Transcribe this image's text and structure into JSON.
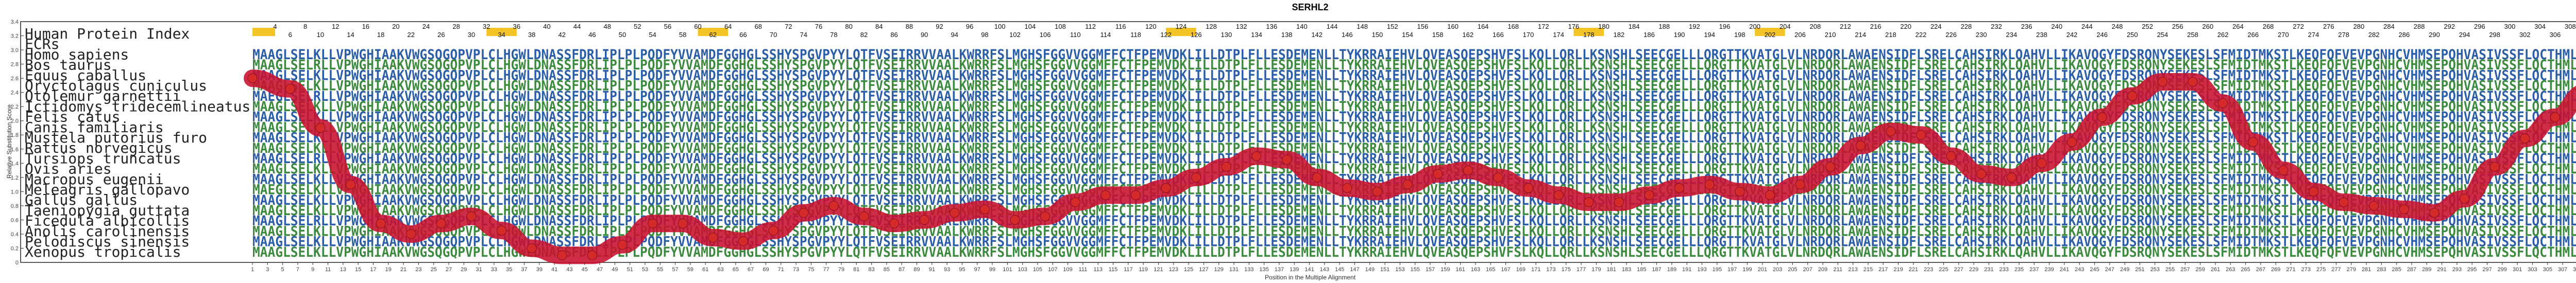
{
  "chart_data": {
    "type": "line",
    "title": "SERHL2",
    "xlabel": "Position in the Multiple Alignment",
    "ylabel": "Relative Substitution Score",
    "xlim": [
      1,
      313
    ],
    "ylim": [
      0,
      3.4
    ],
    "yticks": [
      "0",
      "0.2",
      "0.4",
      "0.6",
      "0.8",
      "1.0",
      "1.2",
      "1.4",
      "1.6",
      "1.8",
      "2.0",
      "2.2",
      "2.4",
      "2.6",
      "2.8",
      "3.0",
      "3.2",
      "3.4"
    ],
    "xticks_bottom": [
      "1",
      "3",
      "5",
      "7",
      "9",
      "11",
      "13",
      "15",
      "17",
      "19",
      "21",
      "23",
      "25",
      "27",
      "29",
      "31",
      "33",
      "35",
      "37",
      "39",
      "41",
      "43",
      "45",
      "47",
      "49",
      "51",
      "53",
      "55",
      "57",
      "59",
      "61",
      "63",
      "65",
      "67",
      "69",
      "71",
      "73",
      "75",
      "77",
      "79",
      "81",
      "83",
      "85",
      "87",
      "89",
      "91",
      "93",
      "95",
      "97",
      "99",
      "101",
      "103",
      "105",
      "107",
      "109",
      "111",
      "113",
      "115",
      "117",
      "119",
      "121",
      "123",
      "125",
      "127",
      "129",
      "131",
      "133",
      "135",
      "137",
      "139",
      "141",
      "143",
      "145",
      "147",
      "149",
      "151",
      "153",
      "155",
      "157",
      "159",
      "161",
      "163",
      "165",
      "167",
      "169",
      "171",
      "173",
      "175",
      "177",
      "179",
      "181",
      "183",
      "185",
      "187",
      "189",
      "191",
      "193",
      "195",
      "197",
      "199",
      "201",
      "203",
      "205",
      "207",
      "209",
      "211",
      "213",
      "215",
      "217",
      "219",
      "221",
      "223",
      "225",
      "227",
      "229",
      "231",
      "233",
      "235",
      "237",
      "239",
      "241",
      "243",
      "245",
      "247",
      "249",
      "251",
      "253",
      "255",
      "257",
      "259",
      "261",
      "263",
      "265",
      "267",
      "269",
      "271",
      "273",
      "275",
      "277",
      "279",
      "281",
      "283",
      "285",
      "287",
      "289",
      "291",
      "293",
      "295",
      "297",
      "299",
      "301",
      "303",
      "305",
      "307",
      "309",
      "311",
      "313"
    ],
    "xticks_top_even": [
      "4",
      "8",
      "12",
      "16",
      "20",
      "24",
      "28",
      "32",
      "36",
      "40",
      "44",
      "48",
      "52",
      "56",
      "60",
      "64",
      "68",
      "72",
      "76",
      "80",
      "84",
      "88",
      "92",
      "96",
      "100",
      "104",
      "108",
      "112",
      "116",
      "120",
      "124",
      "128",
      "132",
      "136",
      "140",
      "144",
      "148",
      "152",
      "156",
      "160",
      "164",
      "168",
      "172",
      "176",
      "180",
      "184",
      "188",
      "192",
      "196",
      "200",
      "204",
      "208",
      "212",
      "216",
      "220",
      "224",
      "228",
      "232",
      "236",
      "240",
      "244",
      "248",
      "252",
      "256",
      "260",
      "264",
      "268",
      "272",
      "276",
      "280",
      "284",
      "288",
      "292",
      "296",
      "300",
      "304",
      "308",
      "312"
    ],
    "xticks_top_odd": [
      "6",
      "10",
      "14",
      "18",
      "22",
      "26",
      "30",
      "34",
      "38",
      "42",
      "46",
      "50",
      "54",
      "58",
      "62",
      "66",
      "70",
      "74",
      "78",
      "82",
      "86",
      "90",
      "94",
      "98",
      "102",
      "106",
      "110",
      "114",
      "118",
      "122",
      "126",
      "130",
      "134",
      "138",
      "142",
      "146",
      "150",
      "154",
      "158",
      "162",
      "166",
      "170",
      "174",
      "178",
      "182",
      "186",
      "190",
      "194",
      "198",
      "202",
      "206",
      "210",
      "214",
      "218",
      "222",
      "226",
      "230",
      "234",
      "238",
      "242",
      "246",
      "250",
      "254",
      "258",
      "262",
      "266",
      "270",
      "274",
      "278",
      "282",
      "286",
      "290",
      "294",
      "298",
      "302",
      "306",
      "310"
    ],
    "series": [
      {
        "x": [
          1,
          6,
          10,
          14,
          18,
          22,
          26,
          30,
          34,
          38,
          42,
          46,
          50,
          54,
          58,
          62,
          66,
          70,
          74,
          78,
          82,
          86,
          90,
          94,
          98,
          102,
          106,
          110,
          114,
          118,
          122,
          126,
          130,
          134,
          138,
          142,
          146,
          150,
          154,
          158,
          162,
          166,
          170,
          174,
          178,
          182,
          186,
          190,
          194,
          198,
          202,
          206,
          210,
          214,
          218,
          222,
          226,
          230,
          234,
          238,
          242,
          246,
          250,
          254,
          258,
          262,
          266,
          270,
          274,
          278,
          282,
          286,
          290,
          294,
          298,
          302,
          306,
          310,
          313
        ],
        "y": [
          2.6,
          2.45,
          1.9,
          1.1,
          0.55,
          0.4,
          0.55,
          0.65,
          0.45,
          0.2,
          0.1,
          0.1,
          0.25,
          0.55,
          0.55,
          0.35,
          0.3,
          0.45,
          0.7,
          0.8,
          0.65,
          0.55,
          0.6,
          0.7,
          0.75,
          0.6,
          0.65,
          0.85,
          0.95,
          0.95,
          1.05,
          1.2,
          1.35,
          1.5,
          1.45,
          1.2,
          1.05,
          1.0,
          1.1,
          1.25,
          1.3,
          1.2,
          1.05,
          0.95,
          0.85,
          0.85,
          0.95,
          1.05,
          1.1,
          1.0,
          0.95,
          1.1,
          1.35,
          1.65,
          1.85,
          1.8,
          1.5,
          1.25,
          1.2,
          1.4,
          1.7,
          2.05,
          2.35,
          2.55,
          2.55,
          2.25,
          1.7,
          1.3,
          1.0,
          0.85,
          0.8,
          0.75,
          0.7,
          0.9,
          1.35,
          1.75,
          2.05,
          2.4,
          2.6
        ]
      }
    ],
    "grid": false,
    "line_color": "#c8102e",
    "highlight_color": "#f2b800"
  },
  "species": [
    "Human Protein Index",
    "ECRs",
    "Homo sapiens",
    "Bos taurus",
    "Equus caballus",
    "Oryctolagus cuniculus",
    "Otolemur garnettii",
    "Ictidomys tridecemlineatus",
    "Felis catus",
    "Canis familiaris",
    "Mustela putorius furo",
    "Rattus norvegicus",
    "Tursiops truncatus",
    "Ovis aries",
    "Macropus eugenii",
    "Meleagris gallopavo",
    "Gallus gallus",
    "Taeniopygia guttata",
    "Ficedula albicollis",
    "Anolis carolinensis",
    "Pelodiscus sinensis",
    "Xenopus tropicalis"
  ],
  "alignment_rows": [
    "MAAGLSELKLLVPWGHIAAKVWGSQGQPVPLCLHGWLDNASSFDRLIPLPLPQDFYVVAMDFGGHGLSSHYSPGVPYYLQTFVSEIRRVVAALKWRRFSLMGHSFGGVVGGMFFCTFPEMVDKLILLDTPLFLLESDEMENLLTYKRRAIEHVLQVEASQEPSHVFSLKQLLQRLLKSNSHLSEECGELLLQRGTTKVATGLVLNRDQRLAWAENSIDFLSRELCAHSIRKLQAHVLLIKAVQGYFDSRQNYSEKESLSFMIDTMKSTLKEQFQFVEVPGNHCVHMSEPQHVASIVSSFLQCTHMLPAQL",
    "MAAGLSELRLLVPWGHIAAKVWGSQGQPVPLCLHGWLDNASSFDRLIPLPLPQDFYVVAMDFGGHGLSSHYSPGVPYYLQTFVSEIRRVVAALKWRRFSLMGHSFGGVVGGMFFCTFPEMVDKLILLDTPLFLLESDEMENLLTYKRRAIEHVLQVEASQEPSHVFSLKQLLQRLLKSNSHLSEECGELLLQRGTTKVATGLVLNRDQRLAWAENSIDFLSRELCAHSIRKLQAHVLLIKAVQGYFDSRQNYSEKESLSFMIDTMKSTLKEQFQFVEVPGNHCVHMSEPQHVASIVSSFLQCTHMLPAQL",
    "MAAGLSELKLLVPWGHIAAKVWGSQGQPVPLCLHGWLDNASSFDRLIPLPLPQDFYVVAMDFGGHGLSSHYSPGVPYYLQTFVSEIRRVVAALKWRRFSLMGHSFGGVVGGMFFCTFPEMVDKLILLDTPLFLLESDEMENLLTYKRRAIEHVLQVEASQEPSHVFSLKQLLQRLLKSNSHLSEECGELLLQRGTTKVATGLVLNRDQRLAWAENSIDFLSRELCAHSIRKLQAHVLLIKAVQGYFDSRQNYSEKESLSFMIDTMKSTLKEQFQFVEVPGNHCVHMSEPQHVASIVSSFLQCTHMLPAQL",
    "MAAGLSELKLLVPWGHIAAKVWGSQGQPVPLCLHGWLDNASSFDRLIPLPLPQDFYVVAMDFGGHGLSSHYSPGVPYYLQTFVSEIRRVVAALKWRRFSLMGHSFGGVVGGMFFCTFPEMVDKLILLDTPLFLLESDEMENLLTYKRRAIEHVLQVEASQEPSHVFSLKQLLQRLLKSNSHLSEECGELLLQRGTTKVATGLVLNRDQRLAWAENSIDFLSRELCAHSIRKLQAHVLLIKAVQGYFDSRQNYSEKESLSFMIDTMKSTLKEQFQFVEVPGNHCVHMSEPQHVASIVSSFLQCTHMLPAQL",
    "MAEGLSELRLLVPWGHIAAKVWGSQGQPVPLCLHGWLDNASSFDRLIPLPLPQDFYVVAMDFGGHGLSSHYSPGVPYYLQTFVSEIRRVVAALKWRRFSLMGHSFGGVVGGMFFCTFPEMVDKLILLDTPLFLLESDEMENLLTYKRRAIEHVLQVEASQEPSHVFSLKQLLQRLLKSNSHLSEECGELLLQRGTTKVATGLVLNRDQRLAWAENSIDFLSRELCAHSIRKLQAHVLLIKAVQGYFDSRQNYSEKESLSFMIDTMKSTLKEQFQFVEVPGNHCVHMSEPQHVASIVSSFLQCTHMLPAQL",
    "MAAGLSELKLLVPWGHIAAKVWGSQGQPVPLCLHGWLDNASSFDRLIPLPLPQDFYVVAMDFGGHGLSSHYSPGVPYYLQTFVSEIRRVVAALKWRRFSLMGHSFGGVVGGMFFCTFPEMVDKLILLDTPLFLLESDEMENLLTYKRRAIEHVLQVEASQEPSHVFSLKQLLQRLLKSNSHLSEECGELLLQRGTTKVATGLVLNRDQRLAWAENSIDFLSRELCAHSIRKLQAHVLLIKAVQGYFDSRQNYSEKESLSFMIDTMKSTLKEQFQFVEVPGNHCVHMSEPQHVASIVSSFLQCTHMLPAQL",
    "MAAGLSELKLLVPWGHIAAKVWGSQGQPVPLCLHGWLDNASSFDRLIPLPLPQDFYVVAMDFGGHGLSSHYSPGVPYYLQTFVSEIRRVVAALKWRRFSLMGHSFGGVVGGMFFCTFPEMVDKLILLDTPLFLLESDEMENLLTYKRRAIEHVLQVEASQEPSHVFSLKQLLQRLLKSNSHLSEECGELLLQRGTTKVATGLVLNRDQRLAWAENSIDFLSRELCAHSIRKLQAHVLLIKAVQGYFDSRQNYSEKESLSFMIDTMKSTLKEQFQFVEVPGNHCVHMSEPQHVASIVSSFLQCTHMLPAQL",
    "MAAGLSELKLLVPWGHIAAKVWGSQGQPVPLCLHGWLDNASSFDRLIPLPLPQDFYVVAMDFGGHGLSSHYSPGVPYYLQTFVSEIRRVVAALKWRRFSLMGHSFGGVVGGMFFCTFPEMVDKLILLDTPLFLLESDEMENLLTYKRRAIEHVLQVEASQEPSHVFSLKQLLQRLLKSNSHLSEECGELLLQRGTTKVATGLVLNRDQRLAWAENSIDFLSRELCAHSIRKLQAHVLLIKAVQGYFDSRQNYSEKESLSFMIDTMKSTLKEQFQFVEVPGNHCVHMSEPQHVASIVSSFLQCTHMLPAQL",
    "MAAGLSELKLLVPWGHIAAKVWGSQGQPVPLCLHGWLDNASSFDRLIPLPLPQDFYVVAMDFGGHGLSSHYSPGVPYYLQTFVSEIRRVVAALKWRRFSLMGHSFGGVVGGMFFCTFPEMVDKLILLDTPLFLLESDEMENLLTYKRRAIEHVLQVEASQEPSHVFSLKQLLQRLLKSNSHLSEECGELLLQRGTTKVATGLVLNRDQRLAWAENSIDFLSRELCAHSIRKLQAHVLLIKAVQGYFDSRQNYSEKESLSFMIDTMKSTLKEQFQFVEVPGNHCVHMSEPQHVASIVSSFLQCTHMLPAQL",
    "MAAGLSELKLLVPWGHIAAKVWGSQGQPVPLCLHGWLDNASSFDRLIPLPLPQDFYVVAMDFGGHGLSSHYSPGVPYYLQTFVSEIRRVVAALKWRRFSLMGHSFGGVVGGMFFCTFPEMVDKLILLDTPLFLLESDEMENLLTYKRRAIEHVLQVEASQEPSHVFSLKQLLQRLLKSNSHLSEECGELLLQRGTTKVATGLVLNRDQRLAWAENSIDFLSRELCAHSIRKLQAHVLLIKAVQGYFDSRQNYSEKESLSFMIDTMKSTLKEQFQFVEVPGNHCVHMSEPQHVASIVSSFLQCTHMLPAQL",
    "MAAGLSELRLLVPWGHIAAKVWGSQGQPVPLCLHGWLDNASSFDRLIPLPLPQDFYVVAMDFGGHGLSSHYSPGVPYYLQTFVSEIRRVVAALKWRRFSLMGHSFGGVVGGMFFCTFPEMVDKLILLDTPLFLLESDEMENLLTYKRRAIEHVLQVEASQEPSHVFSLKQLLQRLLKSNSHLSEECGELLLQRGTTKVATGLVLNRDQRLAWAENSIDFLSRELCAHSIRKLQAHVLLIKAVQGYFDSRQNYSEKESLSFMIDTMKSTLKEQFQFVEVPGNHCVHMSEPQHVASIVSSFLQCTHMLPAQL",
    "MAAGLSELKLLVPWGHIAAKVWGSQGQPVPLCLHGWLDNASSFDRLIPLPLPQDFYVVAMDFGGHGLSSHYSPGVPYYLQTFVSEIRRVVAALKWRRFSLMGHSFGGVVGGMFFCTFPEMVDKLILLDTPLFLLESDEMENLLTYKRRAIEHVLQVEASQEPSHVFSLKQLLQRLLKSNSHLSEECGELLLQRGTTKVATGLVLNRDQRLAWAENSIDFLSRELCAHSIRKLQAHVLLIKAVQGYFDSRQNYSEKESLSFMIDTMKSTLKEQFQFVEVPGNHCVHMSEPQHVASIVSSFLQCTHMLPAQL",
    "MAAGLSELKLLVPWGHIAAKVWGSQGQPVPLCLHGWLDNASSFDRLIPLPLPQDFYVVAMDFGGHGLSSHYSPGVPYYLQTFVSEIRRVVAALKWRRFSLMGHSFGGVVGGMFFCTFPEMVDKLILLDTPLFLLESDEMENLLTYKRRAIEHVLQVEASQEPSHVFSLKQLLQRLLKSNSHLSEECGELLLQRGTTKVATGLVLNRDQRLAWAENSIDFLSRELCAHSIRKLQAHVLLIKAVQGYFDSRQNYSEKESLSFMIDTMKSTLKEQFQFVEVPGNHCVHMSEPQHVASIVSSFLQCTHMLPAQL",
    "MAEGLSELKLLVPWGHIAAKVWGSQGQPVPLCLHGWLDNASSFDRLIPLPLPQDFYVVAMDFGGHGLSSHYSPGVPYYLQTFVSEIRRVVAALKWRRFSLMGHSFGGVVGGMFFCTFPEMVDKLILLDTPLFLLESDEMENLLTYKRRAIEHVLQVEASQEPSHVFSLKQLLQRLLKSNSHLSEECGELLLQRGTTKVATGLVLNRDQRLAWAENSIDFLSRELCAHSIRKLQAHVLLIKAVQGYFDSRQNYSEKESLSFMIDTMKSTLKEQFQFVEVPGNHCVHMSEPQHVASIVSSFLQCTHMLPAQL",
    "MAAGLSELKLLVPWGHIAAKVWGSQGQPVPLCLHGWLDNASSFDRLIPLPLPQDFYVVAMDFGGHGLSSHYSPGVPYYLQTFVSEIRRVVAALKWRRFSLMGHSFGGVVGGMFFCTFPEMVDKLILLDTPLFLLESDEMENLLTYKRRAIEHVLQVEASQEPSHVFSLKQLLQRLLKSNSHLSEECGELLLQRGTTKVATGLVLNRDQRLAWAENSIDFLSRELCAHSIRKLQAHVLLIKAVQGYFDSRQNYSEKESLSFMIDTMKSTLKEQFQFVEVPGNHCVHMSEPQHVASIVSSFLQCTHMLPAQL",
    "MAAGLSELKLLVPWGHIAAKVWGSQGQPVPLCLHGWLDNASSFDRLIPLPLPQDFYVVAMDFGGHGLSSHYSPGVPYYLQTFVSEIRRVVAALKWRRFSLMGHSFGGVVGGMFFCTFPEMVDKLILLDTPLFLLESDEMENLLTYKRRAIEHVLQVEASQEPSHVFSLKQLLQRLLKSNSHLSEECGELLLQRGTTKVATGLVLNRDQRLAWAENSIDFLSRELCAHSIRKLQAHVLLIKAVQGYFDSRQNYSEKESLSFMIDTMKSTLKEQFQFVEVPGNHCVHMSEPQHVASIVSSFLQCTHMLPAQL",
    "MAAGLSELRLLVPWGHIAAKVWGSQGQPVPLCLHGWLDNASSFDRLIPLPLPQDFYVVAMDFGGHGLSSHYSPGVPYYLQTFVSEIRRVVAALKWRRFSLMGHSFGGVVGGMFFCTFPEMVDKLILLDTPLFLLESDEMENLLTYKRRAIEHVLQVEASQEPSHVFSLKQLLQRLLKSNSHLSEECGELLLQRGTTKVATGLVLNRDQRLAWAENSIDFLSRELCAHSIRKLQAHVLLIKAVQGYFDSRQNYSEKESLSFMIDTMKSTLKEQFQFVEVPGNHCVHMSEPQHVASIVSSFLQCTHMLPAQL",
    "MAAGLSELKLLVPWGHIAAKVWGSQGQPVPLCLHGWLDNASSFDRLIPLPLPQDFYVVAMDFGGHGLSSHYSPGVPYYLQTFVSEIRRVVAALKWRRFSLMGHSFGGVVGGMFFCTFPEMVDKLILLDTPLFLLESDEMENLLTYKRRAIEHVLQVEASQEPSHVFSLKQLLQRLLKSNSHLSEECGELLLQRGTTKVATGLVLNRDQRLAWAENSIDFLSRELCAHSIRKLQAHVLLIKAVQGYFDSRQNYSEKESLSFMIDTMKSTLKEQFQFVEVPGNHCVHMSEPQHVASIVSSFLQCTHMLPAQL",
    "MAAGLSELKLLVPWGHIAAKVWGSQGQPVPLCLHGWLDNASSFDRLIPLPLPQDFYVVAMDFGGHGLSSHYSPGVPYYLQTFVSEIRRVVAALKWRRFSLMGHSFGGVVGGMFFCTFPEMVDKLILLDTPLFLLESDEMENLLTYKRRAIEHVLQVEASQEPSHVFSLKQLLQRLLKSNSHLSEECGELLLQRGTTKVATGLVLNRDQRLAWAENSIDFLSRELCAHSIRKLQAHVLLIKAVQGYFDSRQNYSEKESLSFMIDTMKSTLKEQFQFVEVPGNHCVHMSEPQHVASIVSSFLQCTHMLPAQL",
    "MAAGLSELKLLVPWGHIAAKVWGSQGQPVPLCLHGWLDNASSFDRLIPLPLPQDFYVVAMDFGGHGLSSHYSPGVPYYLQTFVSEIRRVVAALKWRRFSLMGHSFGGVVGGMFFCTFPEMVDKLILLDTPLFLLESDEMENLLTYKRRAIEHVLQVEASQEPSHVFSLKQLLQRLLKSNSHLSEECGELLLQRGTTKVATGLVLNRDQRLAWAENSIDFLSRELCAHSIRKLQAHVLLIKAVQGYFDSRQNYSEKESLSFMIDTMKSTLKEQFQFVEVPGNHCVHMSEPQHVASIVSSFLQCTHMLPAQL"
  ]
}
